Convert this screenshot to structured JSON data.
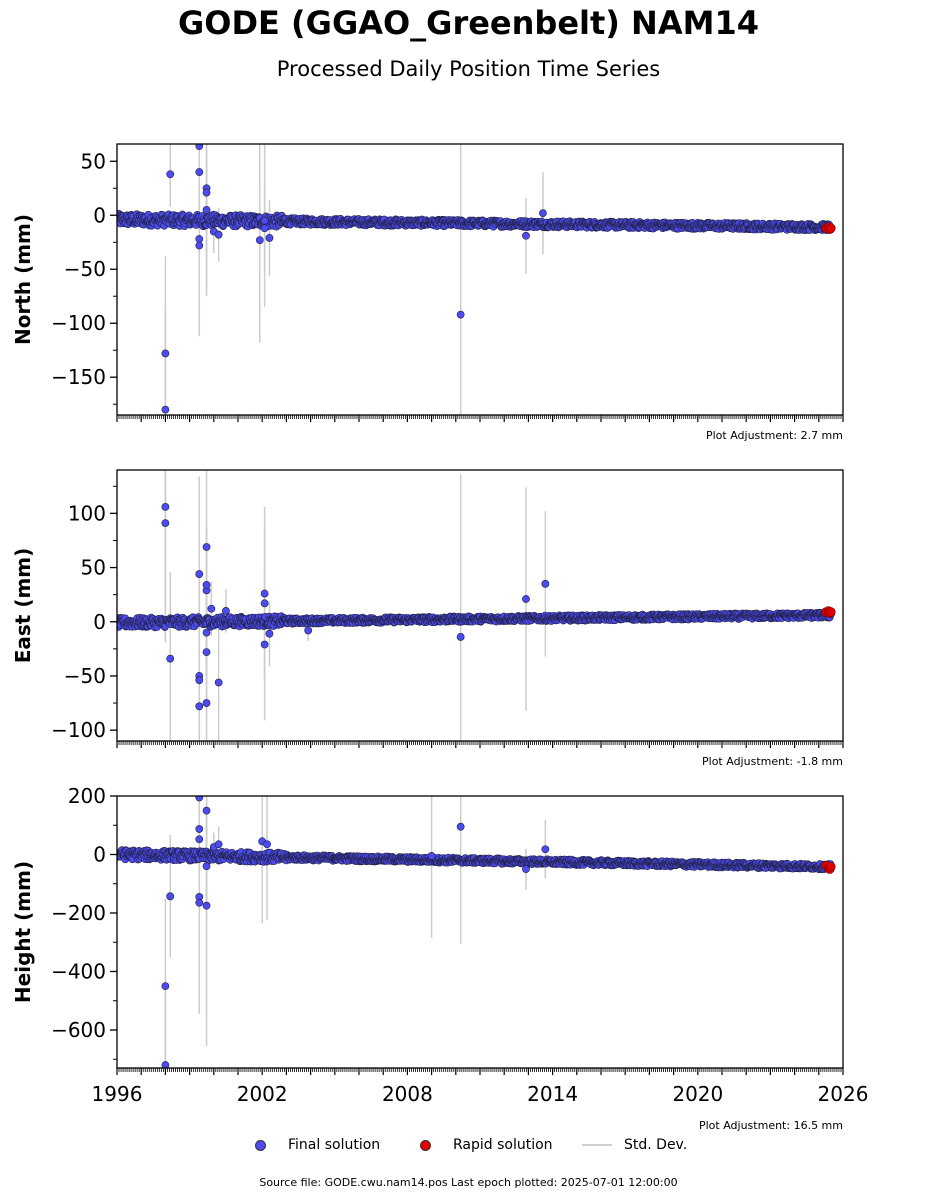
{
  "header": {
    "title": "GODE (GGAO_Greenbelt) NAM14",
    "subtitle": "Processed Daily Position Time Series"
  },
  "colors": {
    "final": "#4b4bf0",
    "rapid": "#e00000",
    "stddev": "#cccccc",
    "marker_edge": "#222244"
  },
  "chart_data": [
    {
      "type": "scatter",
      "ylabel": "North (mm)",
      "ylim": [
        -185,
        66
      ],
      "yticks": [
        50,
        0,
        -50,
        -100,
        -150
      ],
      "ytick_labels": [
        "50",
        "0",
        "−50",
        "−100",
        "−150"
      ],
      "xlim": [
        1996,
        2026
      ],
      "adjustment": "Plot Adjustment: 2.7 mm",
      "trend": {
        "start": [
          1996,
          -4
        ],
        "end": [
          2025.5,
          -11
        ],
        "noise": 3
      },
      "outliers": [
        [
          1998.0,
          -128,
          90
        ],
        [
          1998.0,
          -180,
          95
        ],
        [
          1998.2,
          38,
          30
        ],
        [
          1999.4,
          64,
          70
        ],
        [
          1999.4,
          40,
          50
        ],
        [
          1999.4,
          -22,
          90
        ],
        [
          1999.4,
          -28,
          70
        ],
        [
          1999.7,
          25,
          100
        ],
        [
          1999.7,
          21,
          90
        ],
        [
          1999.7,
          5,
          40
        ],
        [
          2000.0,
          -15,
          20
        ],
        [
          2000.2,
          -18,
          25
        ],
        [
          2001.9,
          -23,
          95
        ],
        [
          2002.1,
          -5,
          80
        ],
        [
          2002.1,
          -12,
          40
        ],
        [
          2002.3,
          -21,
          35
        ],
        [
          2010.2,
          -92,
          160
        ],
        [
          2012.9,
          -19,
          35
        ],
        [
          2013.6,
          2,
          38
        ]
      ],
      "rapid": [
        [
          2025.3,
          -12
        ],
        [
          2025.4,
          -11
        ],
        [
          2025.45,
          -13
        ],
        [
          2025.5,
          -12
        ]
      ]
    },
    {
      "type": "scatter",
      "ylabel": "East (mm)",
      "ylim": [
        -110,
        140
      ],
      "yticks": [
        100,
        50,
        0,
        -50,
        -100
      ],
      "ytick_labels": [
        "100",
        "50",
        "0",
        "−50",
        "−100"
      ],
      "xlim": [
        1996,
        2026
      ],
      "adjustment": "Plot Adjustment: -1.8 mm",
      "trend": {
        "start": [
          1996,
          -1
        ],
        "end": [
          2025.5,
          6
        ],
        "noise": 2.5
      },
      "outliers": [
        [
          1998.0,
          106,
          120
        ],
        [
          1998.0,
          91,
          110
        ],
        [
          1998.2,
          -34,
          80
        ],
        [
          1999.4,
          44,
          90
        ],
        [
          1999.4,
          -50,
          90
        ],
        [
          1999.4,
          -54,
          80
        ],
        [
          1999.4,
          -78,
          70
        ],
        [
          1999.7,
          69,
          110
        ],
        [
          1999.7,
          29,
          60
        ],
        [
          1999.7,
          34,
          50
        ],
        [
          1999.7,
          -10,
          40
        ],
        [
          1999.7,
          -28,
          60
        ],
        [
          1999.7,
          -75,
          70
        ],
        [
          1999.9,
          12,
          25
        ],
        [
          2000.2,
          -56,
          60
        ],
        [
          2000.5,
          10,
          20
        ],
        [
          2002.1,
          26,
          80
        ],
        [
          2002.1,
          17,
          70
        ],
        [
          2002.1,
          -21,
          70
        ],
        [
          2002.3,
          -11,
          30
        ],
        [
          2003.9,
          -8,
          10
        ],
        [
          2010.2,
          -14,
          150
        ],
        [
          2012.9,
          21,
          103
        ],
        [
          2013.7,
          35,
          67
        ]
      ],
      "rapid": [
        [
          2025.3,
          9
        ],
        [
          2025.4,
          10
        ],
        [
          2025.45,
          8
        ],
        [
          2025.5,
          9
        ]
      ]
    },
    {
      "type": "scatter",
      "ylabel": "Height (mm)",
      "ylim": [
        -730,
        200
      ],
      "yticks": [
        200,
        0,
        -200,
        -400,
        -600
      ],
      "ytick_labels": [
        "200",
        "0",
        "−200",
        "−400",
        "−600"
      ],
      "xlim": [
        1996,
        2026
      ],
      "xticks": [
        1996,
        2002,
        2008,
        2014,
        2020,
        2026
      ],
      "xtick_labels": [
        "1996",
        "2002",
        "2008",
        "2014",
        "2020",
        "2026"
      ],
      "adjustment": "Plot Adjustment: 16.5 mm",
      "trend": {
        "start": [
          1996,
          0
        ],
        "end": [
          2025.5,
          -42
        ],
        "noise": 9
      },
      "outliers": [
        [
          1998.0,
          -450,
          300
        ],
        [
          1998.0,
          -720,
          300
        ],
        [
          1998.2,
          -143,
          210
        ],
        [
          1999.4,
          195,
          350
        ],
        [
          1999.4,
          87,
          300
        ],
        [
          1999.4,
          52,
          250
        ],
        [
          1999.4,
          -145,
          400
        ],
        [
          1999.4,
          -165,
          380
        ],
        [
          1999.7,
          150,
          300
        ],
        [
          1999.7,
          -175,
          480
        ],
        [
          1999.7,
          -40,
          180
        ],
        [
          2000.0,
          25,
          50
        ],
        [
          2000.2,
          35,
          60
        ],
        [
          2002.0,
          45,
          280
        ],
        [
          2002.2,
          35,
          260
        ],
        [
          2009.0,
          -5,
          280
        ],
        [
          2010.2,
          95,
          400
        ],
        [
          2012.9,
          -50,
          70
        ],
        [
          2013.7,
          18,
          100
        ]
      ],
      "rapid": [
        [
          2025.3,
          -38
        ],
        [
          2025.4,
          -45
        ],
        [
          2025.45,
          -50
        ],
        [
          2025.5,
          -42
        ]
      ]
    }
  ],
  "legend": {
    "final": "Final solution",
    "rapid": "Rapid solution",
    "stddev": "Std. Dev."
  },
  "footer": {
    "text": "Source file: GODE.cwu.nam14.pos  Last epoch plotted: 2025-07-01 12:00:00"
  }
}
